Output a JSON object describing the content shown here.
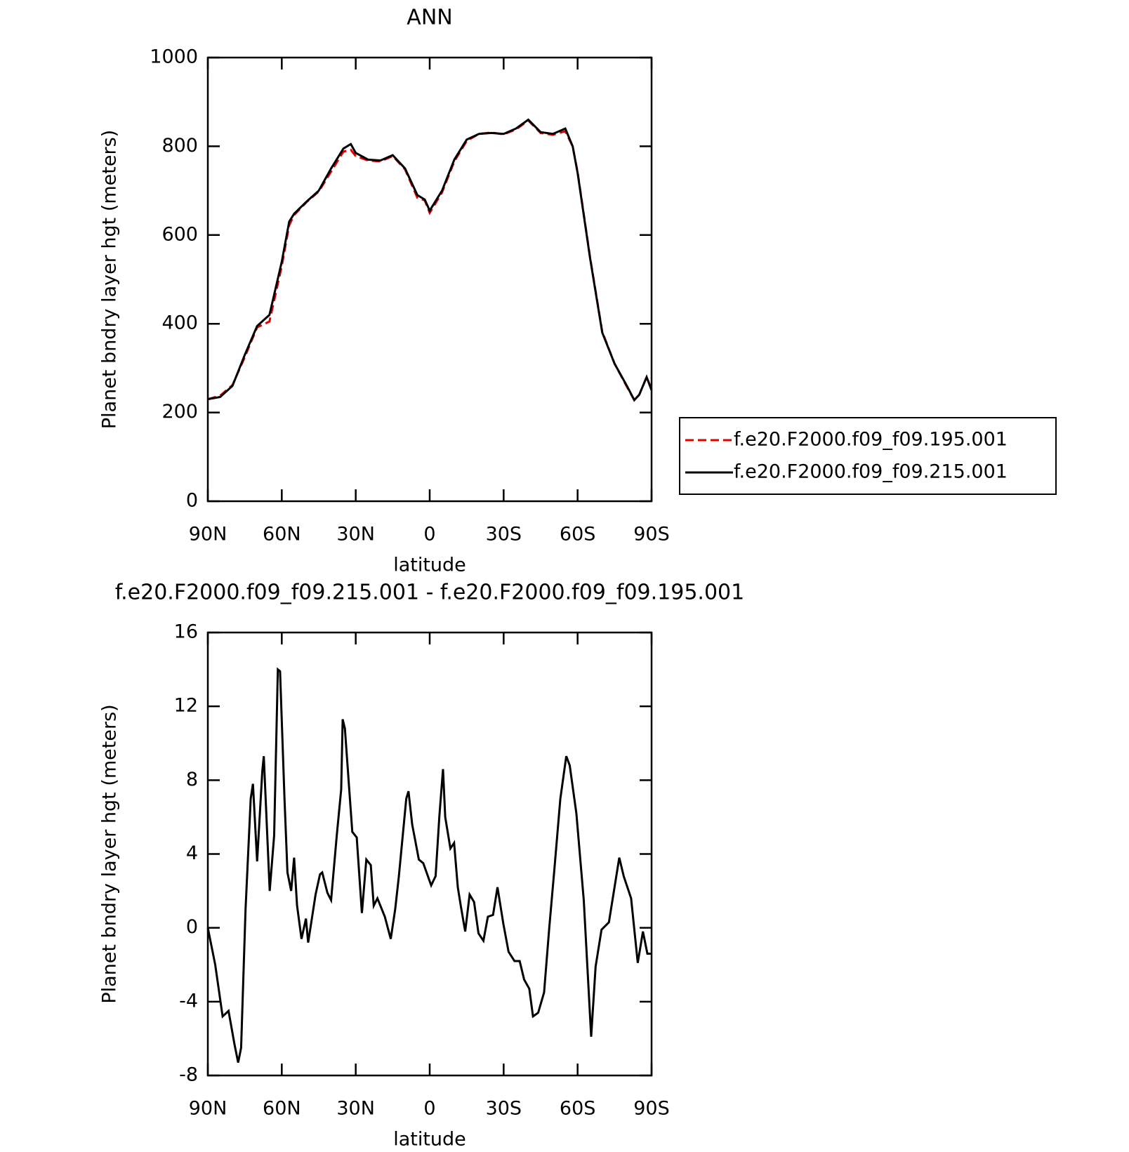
{
  "chart_data": [
    {
      "type": "line",
      "title": "ANN",
      "ylabel": "Planet bndry layer hgt (meters)",
      "xlabel": "latitude",
      "x": [
        90,
        85,
        80,
        75,
        70,
        65,
        60,
        57,
        55,
        50,
        45,
        40,
        35,
        32,
        30,
        25,
        20,
        15,
        10,
        5,
        2,
        0,
        -5,
        -10,
        -15,
        -20,
        -25,
        -30,
        -35,
        -40,
        -45,
        -50,
        -55,
        -58,
        -60,
        -65,
        -70,
        -75,
        -80,
        -83,
        -85,
        -88,
        -90
      ],
      "series": [
        {
          "name": "f.e20.F2000.f09_f09.195.001",
          "color": "#e00000",
          "style": "dashed",
          "values": [
            230,
            238,
            262,
            325,
            392,
            405,
            530,
            622,
            645,
            674,
            698,
            743,
            788,
            792,
            778,
            768,
            766,
            778,
            748,
            684,
            678,
            650,
            696,
            766,
            812,
            828,
            831,
            827,
            838,
            858,
            830,
            826,
            834,
            800,
            742,
            552,
            382,
            310,
            258,
            228,
            240,
            280,
            252
          ]
        },
        {
          "name": "f.e20.F2000.f09_f09.215.001",
          "color": "#000000",
          "style": "solid",
          "values": [
            230,
            235,
            260,
            330,
            395,
            420,
            540,
            630,
            648,
            675,
            700,
            750,
            795,
            805,
            785,
            770,
            768,
            780,
            750,
            690,
            680,
            655,
            700,
            770,
            815,
            828,
            830,
            828,
            840,
            860,
            832,
            828,
            840,
            800,
            740,
            550,
            380,
            310,
            260,
            228,
            240,
            280,
            250
          ]
        }
      ],
      "xlim": [
        90,
        -90
      ],
      "xticks": [
        {
          "value": 90,
          "label": "90N"
        },
        {
          "value": 60,
          "label": "60N"
        },
        {
          "value": 30,
          "label": "30N"
        },
        0,
        {
          "value": -30,
          "label": "30S"
        },
        {
          "value": -60,
          "label": "60S"
        },
        {
          "value": -90,
          "label": "90S"
        }
      ],
      "ylim": [
        0,
        1000
      ],
      "yticks": [
        0,
        200,
        400,
        600,
        800,
        1000
      ],
      "legend": "right"
    },
    {
      "type": "line",
      "title": "f.e20.F2000.f09_f09.215.001 - f.e20.F2000.f09_f09.195.001",
      "ylabel": "Planet bndry layer hgt (meters)",
      "xlabel": "latitude",
      "x": [
        90,
        87,
        84,
        81.6,
        79.2,
        77.7,
        76.5,
        74.7,
        72.6,
        71.7,
        70,
        67.9,
        67.3,
        64.9,
        63.1,
        61.6,
        60.7,
        58.9,
        57.7,
        56.2,
        55,
        53.8,
        52,
        50.2,
        49.3,
        46.3,
        44.5,
        43.6,
        41.5,
        40,
        37.7,
        35.9,
        35.3,
        34.4,
        31.4,
        29.6,
        27.5,
        25.7,
        23.9,
        22.7,
        21.2,
        18.2,
        15.8,
        14,
        12.5,
        9.5,
        8.6,
        7.1,
        4.4,
        2.6,
        -0.6,
        -2.4,
        -3.9,
        -5.4,
        -6.3,
        -8.4,
        -9.9,
        -11.4,
        -12.6,
        -14.4,
        -16.2,
        -18,
        -19.8,
        -21.8,
        -23.6,
        -25.7,
        -27.5,
        -29.9,
        -32,
        -34.4,
        -36.5,
        -38.3,
        -40.4,
        -41.9,
        -44,
        -46.4,
        -48.5,
        -50.6,
        -53,
        -55.4,
        -56.8,
        -59.5,
        -62.5,
        -65.5,
        -67.3,
        -69.7,
        -72.7,
        -75.1,
        -76.9,
        -78.7,
        -81.7,
        -84.4,
        -86.5,
        -88.3,
        -90
      ],
      "series": [
        {
          "color": "#000000",
          "style": "solid",
          "values": [
            0,
            -2,
            -4.8,
            -4.5,
            -6.3,
            -7.3,
            -6.5,
            1,
            7,
            7.8,
            3.6,
            8.5,
            9.3,
            2,
            5,
            14,
            13.9,
            7,
            3,
            2,
            3.8,
            1.2,
            -0.6,
            0.5,
            -0.8,
            1.8,
            2.9,
            3,
            1.9,
            1.5,
            5,
            7.5,
            11.3,
            10.8,
            5.2,
            4.9,
            0.8,
            3.7,
            3.4,
            1.2,
            1.6,
            0.6,
            -0.6,
            1,
            2.8,
            7,
            7.4,
            5.6,
            3.7,
            3.5,
            2.3,
            2.8,
            6,
            8.6,
            6,
            4.3,
            4.6,
            2.2,
            1.2,
            -0.2,
            1.8,
            1.4,
            -0.3,
            -0.7,
            0.6,
            0.7,
            2.2,
            0.2,
            -1.3,
            -1.8,
            -1.8,
            -2.8,
            -3.3,
            -4.8,
            -4.6,
            -3.5,
            0,
            3.2,
            7,
            9.3,
            8.8,
            6.2,
            1.5,
            -5.9,
            -2.1,
            -0.1,
            0.3,
            2.3,
            3.8,
            2.8,
            1.6,
            -1.9,
            -0.2,
            -1.4,
            -1.4
          ]
        }
      ],
      "xlim": [
        90,
        -90
      ],
      "xticks": [
        {
          "value": 90,
          "label": "90N"
        },
        {
          "value": 60,
          "label": "60N"
        },
        {
          "value": 30,
          "label": "30N"
        },
        0,
        {
          "value": -30,
          "label": "30S"
        },
        {
          "value": -60,
          "label": "60S"
        },
        {
          "value": -90,
          "label": "90S"
        }
      ],
      "ylim": [
        -8,
        16
      ],
      "yticks": [
        -8,
        -4,
        0,
        4,
        8,
        12,
        16
      ]
    }
  ]
}
